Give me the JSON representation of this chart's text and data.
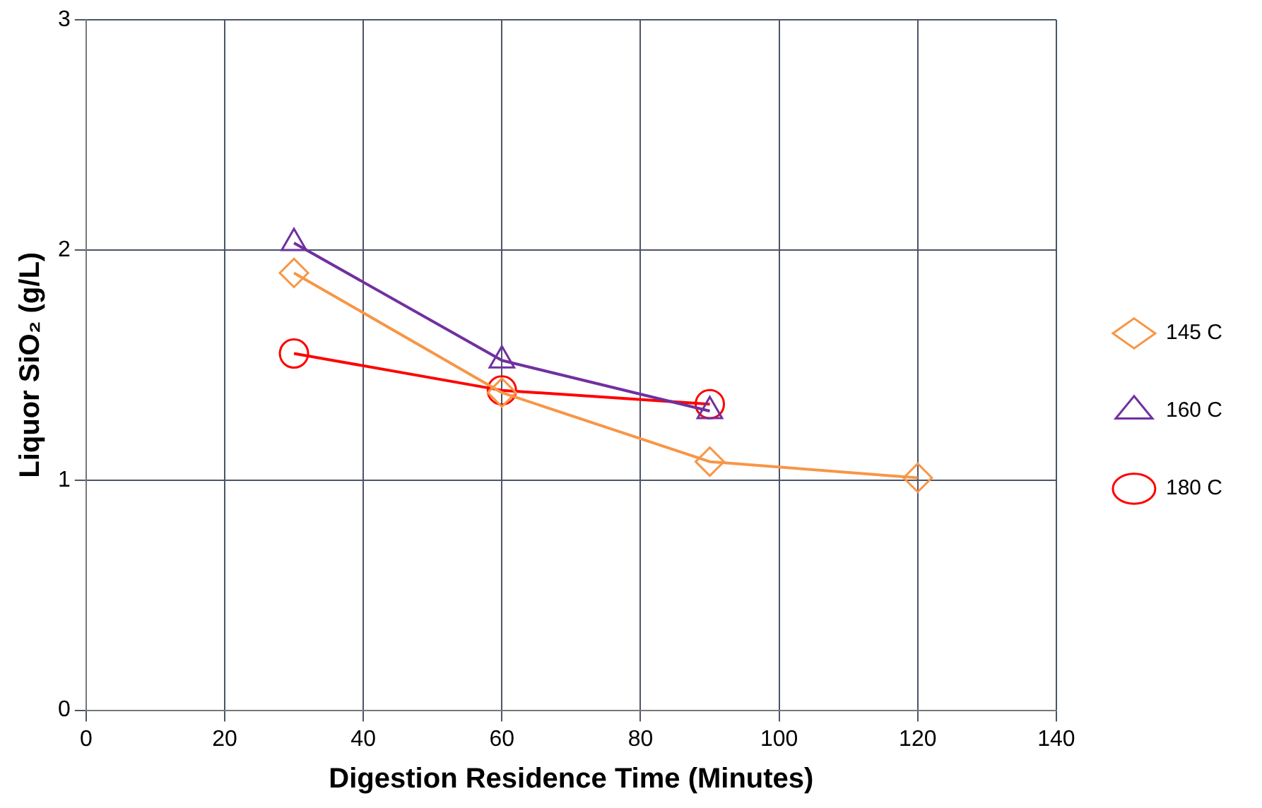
{
  "chart_data": {
    "type": "line",
    "xlabel": "Digestion Residence Time (Minutes)",
    "ylabel": "Liquor SiO₂ (g/L)",
    "xlim": [
      0,
      140
    ],
    "xticks": [
      0,
      20,
      40,
      60,
      80,
      100,
      120,
      140
    ],
    "ylim": [
      0,
      3
    ],
    "yticks": [
      0,
      1,
      2,
      3
    ],
    "grid": true,
    "legend": "right",
    "line_style": "solid",
    "series": [
      {
        "name": "145 C",
        "color": "#f79646",
        "marker": "diamond",
        "x": [
          30,
          60,
          90,
          120
        ],
        "values": [
          1.9,
          1.38,
          1.08,
          1.01
        ]
      },
      {
        "name": "160 C",
        "color": "#7030a0",
        "marker": "triangle",
        "x": [
          30,
          60,
          90
        ],
        "values": [
          2.03,
          1.52,
          1.3
        ]
      },
      {
        "name": "180 C",
        "color": "#ff0000",
        "marker": "circle",
        "x": [
          30,
          60,
          90
        ],
        "values": [
          1.55,
          1.39,
          1.33
        ]
      }
    ]
  }
}
